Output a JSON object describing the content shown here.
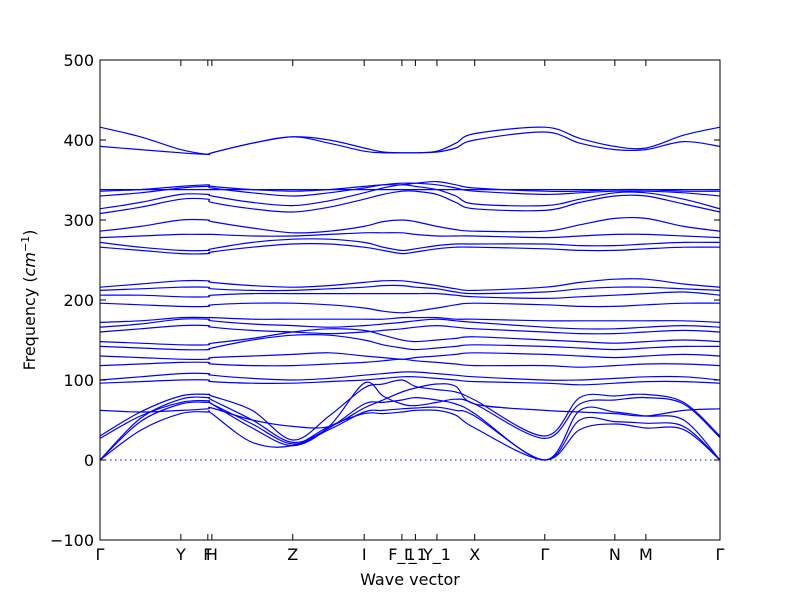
{
  "chart_data": {
    "type": "line",
    "xlabel": "Wave vector",
    "ylabel": "Frequency",
    "ylabel_unit": "cm",
    "ylabel_unit_exp": "−1",
    "ylim": [
      -100,
      500
    ],
    "yticks": [
      -100,
      0,
      100,
      200,
      300,
      400,
      500
    ],
    "xlim": [
      0,
      4.6
    ],
    "kpoints": [
      {
        "label": "Γ",
        "x": 0.0
      },
      {
        "label": "Y",
        "x": 0.6
      },
      {
        "label": "F",
        "x": 0.8
      },
      {
        "label": "H",
        "x": 0.83
      },
      {
        "label": "Z",
        "x": 1.43
      },
      {
        "label": "I",
        "x": 1.96
      },
      {
        "label": "F_1",
        "x": 2.24
      },
      {
        "label": "I_1",
        "x": 2.34
      },
      {
        "label": "Y_1",
        "x": 2.5
      },
      {
        "label": "X",
        "x": 2.78
      },
      {
        "label": "Γ",
        "x": 3.3
      },
      {
        "label": "N",
        "x": 3.82
      },
      {
        "label": "M",
        "x": 4.05
      },
      {
        "label": "Γ",
        "x": 4.6
      }
    ],
    "reference_line": {
      "y": 0,
      "style": "dotted"
    },
    "line_color": "#0000ff",
    "grid": false,
    "series": [
      {
        "y": [
          0,
          37,
          58,
          60,
          58,
          22,
          18,
          42,
          58,
          58,
          60,
          62,
          62,
          56,
          40,
          0,
          38,
          45,
          40,
          38,
          0
        ]
      },
      {
        "y": [
          0,
          48,
          70,
          72,
          70,
          45,
          20,
          38,
          60,
          62,
          64,
          65,
          66,
          62,
          55,
          0,
          50,
          48,
          46,
          42,
          0
        ]
      },
      {
        "y": [
          0,
          52,
          76,
          78,
          75,
          50,
          22,
          40,
          70,
          72,
          75,
          78,
          75,
          70,
          58,
          0,
          62,
          60,
          55,
          50,
          0
        ]
      },
      {
        "y": [
          27,
          55,
          72,
          74,
          70,
          40,
          18,
          42,
          96,
          80,
          70,
          68,
          72,
          76,
          70,
          27,
          70,
          75,
          78,
          70,
          28
        ]
      },
      {
        "y": [
          30,
          60,
          80,
          82,
          80,
          62,
          25,
          55,
          90,
          95,
          100,
          92,
          88,
          85,
          75,
          30,
          78,
          80,
          82,
          72,
          30
        ]
      },
      {
        "y": [
          62,
          60,
          62,
          64,
          65,
          50,
          42,
          42,
          65,
          75,
          85,
          90,
          95,
          92,
          70,
          62,
          60,
          58,
          55,
          62,
          64
        ]
      },
      {
        "y": [
          96,
          98,
          100,
          100,
          98,
          96,
          96,
          98,
          100,
          102,
          104,
          104,
          102,
          100,
          98,
          96,
          94,
          96,
          98,
          98,
          96
        ]
      },
      {
        "y": [
          100,
          104,
          108,
          108,
          106,
          102,
          100,
          102,
          106,
          108,
          110,
          110,
          108,
          106,
          104,
          100,
          100,
          102,
          104,
          104,
          100
        ]
      },
      {
        "y": [
          118,
          120,
          122,
          122,
          120,
          118,
          118,
          120,
          122,
          124,
          126,
          124,
          122,
          120,
          118,
          118,
          116,
          118,
          120,
          120,
          118
        ]
      },
      {
        "y": [
          130,
          128,
          126,
          126,
          128,
          130,
          132,
          134,
          130,
          128,
          126,
          128,
          130,
          132,
          134,
          132,
          130,
          128,
          130,
          132,
          130
        ]
      },
      {
        "y": [
          142,
          140,
          138,
          138,
          140,
          150,
          156,
          156,
          150,
          144,
          140,
          138,
          140,
          142,
          144,
          142,
          140,
          138,
          140,
          142,
          142
        ]
      },
      {
        "y": [
          148,
          146,
          144,
          144,
          146,
          152,
          160,
          164,
          162,
          156,
          150,
          148,
          150,
          152,
          154,
          150,
          148,
          146,
          148,
          150,
          148
        ]
      },
      {
        "y": [
          160,
          164,
          168,
          168,
          166,
          162,
          160,
          158,
          160,
          162,
          164,
          166,
          168,
          166,
          164,
          160,
          158,
          158,
          160,
          162,
          160
        ]
      },
      {
        "y": [
          166,
          170,
          176,
          176,
          174,
          170,
          168,
          166,
          168,
          170,
          172,
          174,
          176,
          174,
          172,
          166,
          164,
          164,
          166,
          168,
          166
        ]
      },
      {
        "y": [
          172,
          174,
          178,
          178,
          178,
          176,
          176,
          176,
          176,
          176,
          178,
          178,
          178,
          176,
          176,
          174,
          174,
          174,
          174,
          174,
          172
        ]
      },
      {
        "y": [
          196,
          194,
          192,
          192,
          194,
          196,
          196,
          194,
          190,
          186,
          184,
          186,
          190,
          194,
          196,
          194,
          192,
          192,
          194,
          196,
          196
        ]
      },
      {
        "y": [
          206,
          206,
          204,
          204,
          206,
          208,
          208,
          208,
          208,
          208,
          208,
          208,
          208,
          206,
          204,
          202,
          204,
          206,
          208,
          210,
          206
        ]
      },
      {
        "y": [
          212,
          214,
          216,
          216,
          214,
          212,
          212,
          214,
          216,
          218,
          218,
          216,
          214,
          210,
          208,
          210,
          214,
          216,
          216,
          214,
          212
        ]
      },
      {
        "y": [
          216,
          220,
          224,
          224,
          222,
          218,
          216,
          218,
          222,
          224,
          224,
          222,
          218,
          214,
          212,
          216,
          222,
          226,
          226,
          220,
          216
        ]
      },
      {
        "y": [
          266,
          262,
          258,
          258,
          260,
          266,
          270,
          270,
          266,
          262,
          258,
          260,
          264,
          266,
          266,
          264,
          262,
          262,
          264,
          266,
          266
        ]
      },
      {
        "y": [
          272,
          266,
          262,
          262,
          264,
          272,
          276,
          276,
          272,
          266,
          262,
          264,
          268,
          270,
          270,
          270,
          268,
          268,
          270,
          272,
          272
        ]
      },
      {
        "y": [
          278,
          280,
          282,
          282,
          282,
          280,
          280,
          282,
          284,
          284,
          284,
          282,
          280,
          280,
          280,
          278,
          280,
          282,
          282,
          280,
          278
        ]
      },
      {
        "y": [
          286,
          292,
          300,
          300,
          298,
          290,
          284,
          286,
          292,
          298,
          300,
          298,
          292,
          288,
          286,
          286,
          294,
          302,
          302,
          292,
          286
        ]
      },
      {
        "y": [
          308,
          316,
          326,
          326,
          322,
          314,
          310,
          316,
          326,
          332,
          336,
          336,
          332,
          322,
          314,
          312,
          322,
          330,
          330,
          320,
          310
        ]
      },
      {
        "y": [
          314,
          322,
          332,
          332,
          330,
          322,
          318,
          324,
          334,
          340,
          344,
          342,
          338,
          330,
          320,
          318,
          326,
          334,
          334,
          326,
          314
        ]
      },
      {
        "y": [
          330,
          334,
          340,
          342,
          340,
          334,
          330,
          334,
          340,
          344,
          346,
          346,
          344,
          340,
          336,
          332,
          334,
          336,
          336,
          334,
          330
        ]
      },
      {
        "y": [
          336,
          338,
          342,
          344,
          342,
          338,
          336,
          338,
          342,
          344,
          344,
          346,
          348,
          344,
          340,
          336,
          336,
          338,
          338,
          336,
          336
        ]
      },
      {
        "y": [
          338,
          338,
          338,
          338,
          338,
          338,
          338,
          338,
          338,
          338,
          338,
          338,
          338,
          338,
          338,
          338,
          338,
          338,
          338,
          338,
          338
        ]
      },
      {
        "y": [
          392,
          388,
          384,
          382,
          384,
          396,
          404,
          400,
          390,
          385,
          384,
          384,
          385,
          390,
          400,
          410,
          396,
          388,
          388,
          398,
          392
        ]
      },
      {
        "y": [
          416,
          404,
          388,
          382,
          384,
          396,
          404,
          396,
          386,
          384,
          384,
          384,
          386,
          396,
          408,
          416,
          402,
          392,
          390,
          406,
          416
        ]
      }
    ],
    "series_x": [
      0.0,
      0.3,
      0.6,
      0.8,
      0.83,
      1.13,
      1.43,
      1.7,
      1.96,
      2.1,
      2.24,
      2.34,
      2.5,
      2.64,
      2.78,
      3.3,
      3.56,
      3.82,
      4.05,
      4.33,
      4.6
    ]
  }
}
